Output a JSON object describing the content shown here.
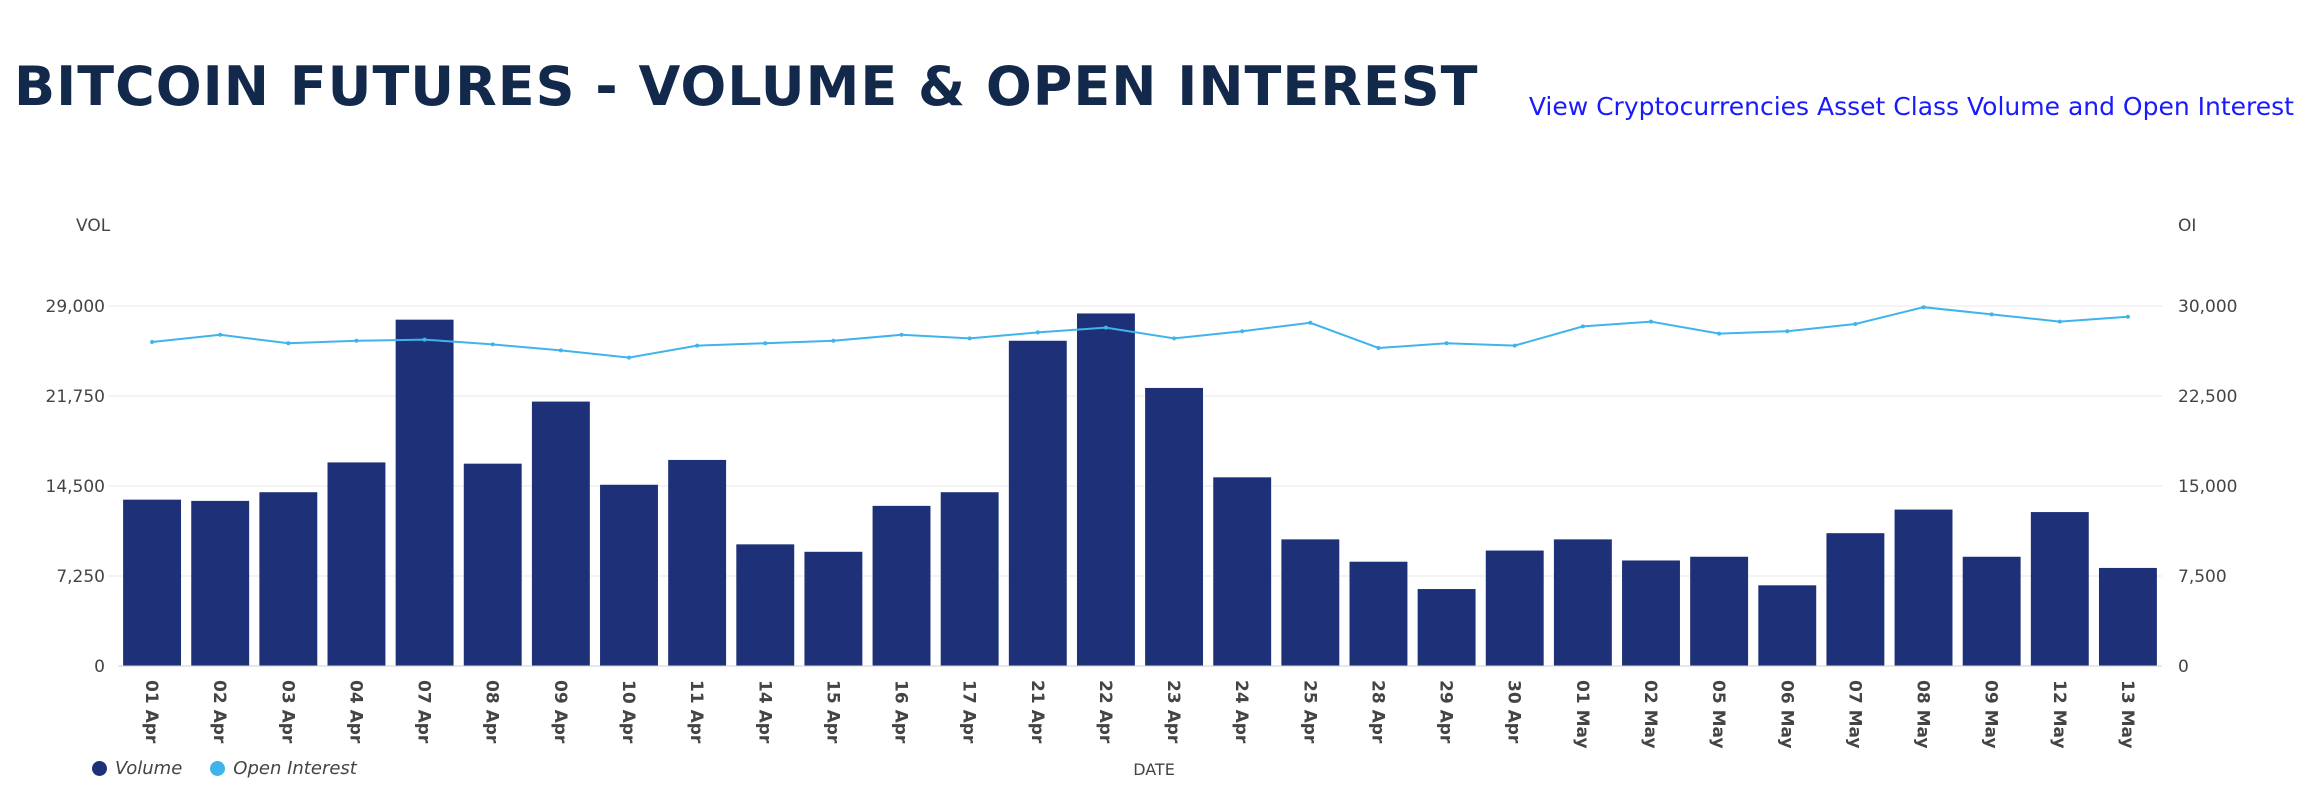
{
  "header": {
    "title": "BITCOIN FUTURES - VOLUME & OPEN INTEREST",
    "link_text": "View Cryptocurrencies Asset Class Volume and Open Interest"
  },
  "colors": {
    "volume": "#1e3178",
    "open_interest": "#3fb4ec",
    "title": "#13294b",
    "link": "#1a1aff"
  },
  "legend": [
    {
      "label": "Volume",
      "color": "#1e3178"
    },
    {
      "label": "Open Interest",
      "color": "#3fb4ec"
    }
  ],
  "chart_data": {
    "type": "bar",
    "title": "BITCOIN FUTURES - VOLUME & OPEN INTEREST",
    "xlabel": "DATE",
    "ylabel_left": "VOL",
    "ylabel_right": "OI",
    "ylim_left": [
      0,
      29000
    ],
    "yticks_left": [
      "0",
      "7,250",
      "14,500",
      "21,750",
      "29,000"
    ],
    "ylim_right": [
      0,
      30000
    ],
    "yticks_right": [
      "0",
      "7,500",
      "15,000",
      "22,500",
      "30,000"
    ],
    "grid": true,
    "legend_position": "bottom-left",
    "categories": [
      "01 Apr",
      "02 Apr",
      "03 Apr",
      "04 Apr",
      "07 Apr",
      "08 Apr",
      "09 Apr",
      "10 Apr",
      "11 Apr",
      "14 Apr",
      "15 Apr",
      "16 Apr",
      "17 Apr",
      "21 Apr",
      "22 Apr",
      "23 Apr",
      "24 Apr",
      "25 Apr",
      "28 Apr",
      "29 Apr",
      "30 Apr",
      "01 May",
      "02 May",
      "05 May",
      "06 May",
      "07 May",
      "08 May",
      "09 May",
      "12 May",
      "13 May"
    ],
    "series": [
      {
        "name": "Volume",
        "type": "bar",
        "axis": "left",
        "values": [
          13400,
          13300,
          14000,
          16400,
          27900,
          16300,
          21300,
          14600,
          16600,
          9800,
          9200,
          12900,
          14000,
          26200,
          28400,
          22400,
          15200,
          10200,
          8400,
          6200,
          9300,
          10200,
          8500,
          8800,
          6500,
          10700,
          12600,
          8800,
          12400,
          7900
        ]
      },
      {
        "name": "Open Interest",
        "type": "line",
        "axis": "right",
        "values": [
          27000,
          27600,
          26900,
          27100,
          27200,
          26800,
          26300,
          25700,
          26700,
          26900,
          27100,
          27600,
          27300,
          27800,
          28200,
          27300,
          27900,
          28600,
          26500,
          26900,
          26700,
          28300,
          28700,
          27700,
          27900,
          28500,
          29900,
          29300,
          28700,
          29100
        ]
      }
    ]
  }
}
